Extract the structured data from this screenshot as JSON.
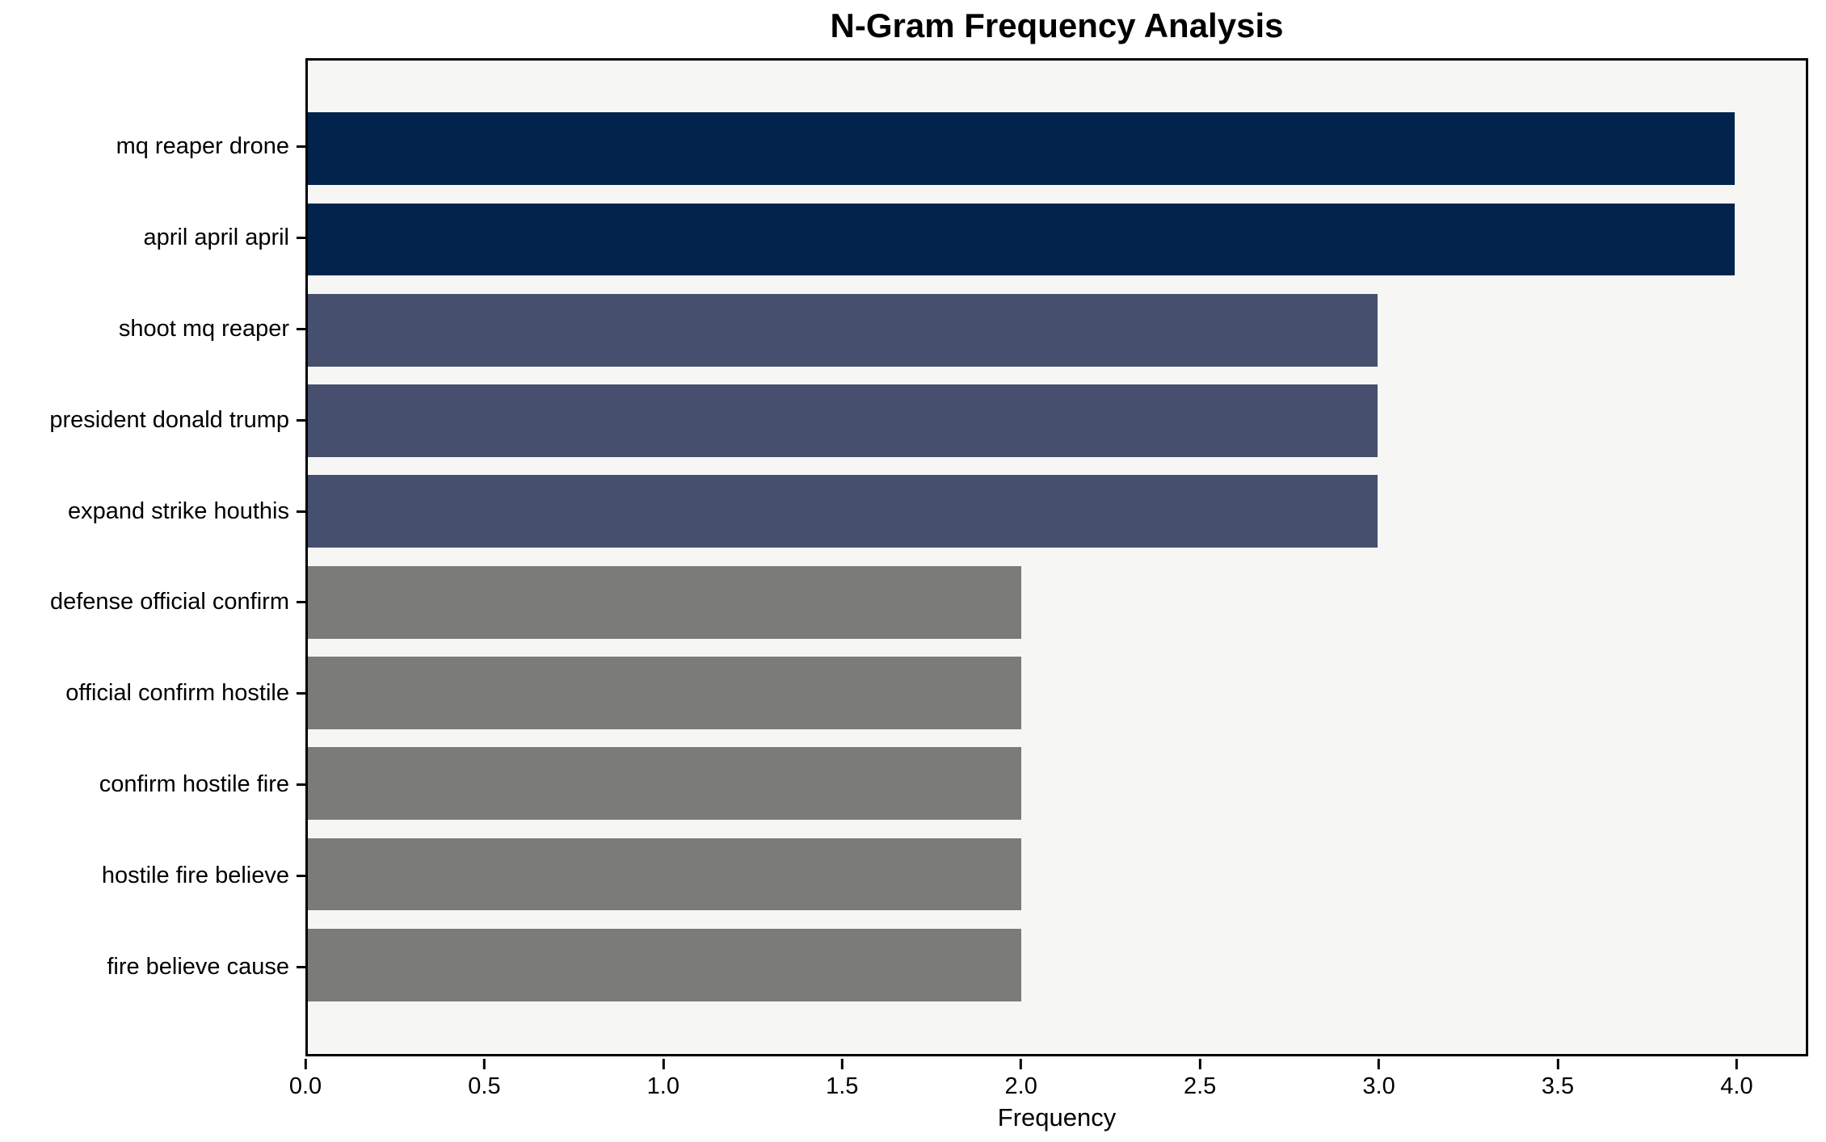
{
  "figure": {
    "title": "N-Gram Frequency Analysis",
    "xlabel": "Frequency"
  },
  "chart_data": {
    "type": "bar",
    "orientation": "horizontal",
    "title": "N-Gram Frequency Analysis",
    "xlabel": "Frequency",
    "ylabel": "",
    "categories": [
      "mq reaper drone",
      "april april april",
      "shoot mq reaper",
      "president donald trump",
      "expand strike houthis",
      "defense official confirm",
      "official confirm hostile",
      "confirm hostile fire",
      "hostile fire believe",
      "fire believe cause"
    ],
    "values": [
      4,
      4,
      3,
      3,
      3,
      2,
      2,
      2,
      2,
      2
    ],
    "bar_colors": [
      "#02234b",
      "#02234b",
      "#464f6e",
      "#464f6e",
      "#464f6e",
      "#7b7b77",
      "#7b7b77",
      "#7b7b77",
      "#7b7b77",
      "#7b7b77"
    ],
    "xlim": [
      0,
      4.2
    ],
    "xticks": [
      0.0,
      0.5,
      1.0,
      1.5,
      2.0,
      2.5,
      3.0,
      3.5,
      4.0
    ],
    "xtick_labels": [
      "0.0",
      "0.5",
      "1.0",
      "1.5",
      "2.0",
      "2.5",
      "3.0",
      "3.5",
      "4.0"
    ],
    "grid": false,
    "legend": false,
    "colors": {
      "frequency_4_bar": "#02234b",
      "frequency_3_bar": "#464f6e",
      "frequency_2_bar": "#7b7b77",
      "plot_background": "#f6f6f5",
      "figure_background": "#ffffff",
      "axis_spine": "#000000",
      "text": "#000000"
    }
  }
}
